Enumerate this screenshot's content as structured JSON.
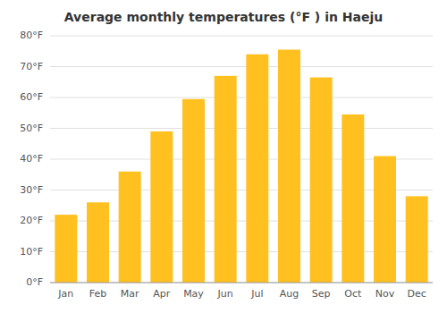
{
  "chart_data": {
    "type": "bar",
    "title": "Average monthly temperatures (°F ) in Haeju",
    "categories": [
      "Jan",
      "Feb",
      "Mar",
      "Apr",
      "May",
      "Jun",
      "Jul",
      "Aug",
      "Sep",
      "Oct",
      "Nov",
      "Dec"
    ],
    "values": [
      22,
      26,
      36,
      49,
      59.5,
      67,
      74,
      75.5,
      66.5,
      54.5,
      41,
      28
    ],
    "color": "#FFC020",
    "ylim": [
      0,
      80
    ],
    "yticks": [
      {
        "value": 0,
        "label": "0°F"
      },
      {
        "value": 10,
        "label": "10°F"
      },
      {
        "value": 20,
        "label": "20°F"
      },
      {
        "value": 30,
        "label": "30°F"
      },
      {
        "value": 40,
        "label": "40°F"
      },
      {
        "value": 50,
        "label": "50°F"
      },
      {
        "value": 60,
        "label": "60°F"
      },
      {
        "value": 70,
        "label": "70°F"
      },
      {
        "value": 80,
        "label": "80°F"
      }
    ],
    "grid": true
  }
}
